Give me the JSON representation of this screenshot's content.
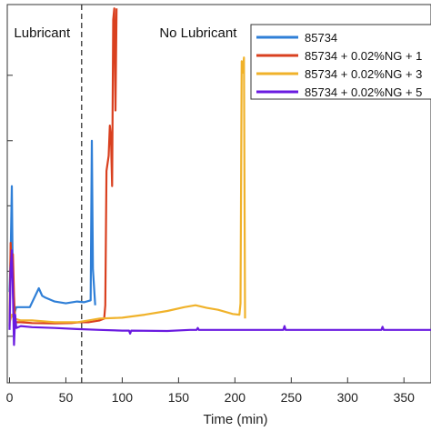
{
  "chart_data": {
    "type": "line",
    "xlabel": "Time (min)",
    "ylabel": "",
    "xlim": [
      -2,
      374
    ],
    "ylim": [
      0,
      1
    ],
    "x_ticks": [
      0,
      50,
      100,
      150,
      200,
      250,
      300,
      350
    ],
    "x_tick_labels": [
      "0",
      "50",
      "100",
      "150",
      "200",
      "250",
      "300",
      "350"
    ],
    "y_ticks": [
      0.123,
      0.295,
      0.468,
      0.64,
      0.813
    ],
    "grid": false,
    "legend_position": "top-right",
    "annotations": [
      {
        "text": "Lubricant",
        "x": 4,
        "y": 0.913
      },
      {
        "text": "No Lubricant",
        "x": 133,
        "y": 0.913
      }
    ],
    "vline": {
      "x": 64,
      "style": "dashed"
    },
    "series": [
      {
        "name": "85734",
        "color": "#2f7fd7",
        "points": [
          [
            0,
            0.24
          ],
          [
            1,
            0.33
          ],
          [
            2,
            0.52
          ],
          [
            3,
            0.24
          ],
          [
            4,
            0.18
          ],
          [
            6,
            0.2
          ],
          [
            10,
            0.2
          ],
          [
            18,
            0.2
          ],
          [
            26,
            0.25
          ],
          [
            29,
            0.23
          ],
          [
            32,
            0.225
          ],
          [
            40,
            0.215
          ],
          [
            50,
            0.21
          ],
          [
            60,
            0.215
          ],
          [
            66,
            0.213
          ],
          [
            72,
            0.218
          ],
          [
            73,
            0.64
          ],
          [
            74,
            0.3
          ],
          [
            76,
            0.205
          ]
        ]
      },
      {
        "name": "85734 + 0.02%NG + 1",
        "color": "#d9401f",
        "points": [
          [
            0,
            0.15
          ],
          [
            1,
            0.37
          ],
          [
            2,
            0.28
          ],
          [
            3,
            0.34
          ],
          [
            4,
            0.23
          ],
          [
            5,
            0.16
          ],
          [
            10,
            0.16
          ],
          [
            20,
            0.158
          ],
          [
            40,
            0.157
          ],
          [
            55,
            0.158
          ],
          [
            62,
            0.16
          ],
          [
            70,
            0.16
          ],
          [
            80,
            0.165
          ],
          [
            84,
            0.17
          ],
          [
            85,
            0.205
          ],
          [
            86,
            0.56
          ],
          [
            87,
            0.58
          ],
          [
            88,
            0.6
          ],
          [
            89,
            0.68
          ],
          [
            90,
            0.65
          ],
          [
            91,
            0.52
          ],
          [
            92,
            0.96
          ],
          [
            93,
            0.99
          ],
          [
            94,
            0.72
          ],
          [
            95,
            0.99
          ]
        ]
      },
      {
        "name": "85734 + 0.02%NG + 3",
        "color": "#f0b22a",
        "points": [
          [
            0,
            0.16
          ],
          [
            2,
            0.18
          ],
          [
            4,
            0.17
          ],
          [
            10,
            0.165
          ],
          [
            20,
            0.165
          ],
          [
            40,
            0.16
          ],
          [
            60,
            0.16
          ],
          [
            70,
            0.165
          ],
          [
            80,
            0.17
          ],
          [
            100,
            0.172
          ],
          [
            120,
            0.18
          ],
          [
            140,
            0.19
          ],
          [
            155,
            0.2
          ],
          [
            165,
            0.205
          ],
          [
            175,
            0.198
          ],
          [
            185,
            0.193
          ],
          [
            198,
            0.182
          ],
          [
            204,
            0.18
          ],
          [
            205,
            0.21
          ],
          [
            206,
            0.85
          ],
          [
            207,
            0.82
          ],
          [
            208,
            0.86
          ],
          [
            209,
            0.17
          ]
        ]
      },
      {
        "name": "85734 + 0.02%NG + 5",
        "color": "#6a1be0",
        "points": [
          [
            0,
            0.14
          ],
          [
            1,
            0.3
          ],
          [
            2,
            0.35
          ],
          [
            3,
            0.24
          ],
          [
            4,
            0.1
          ],
          [
            5,
            0.18
          ],
          [
            6,
            0.145
          ],
          [
            10,
            0.15
          ],
          [
            20,
            0.147
          ],
          [
            40,
            0.145
          ],
          [
            60,
            0.142
          ],
          [
            80,
            0.14
          ],
          [
            100,
            0.138
          ],
          [
            106,
            0.138
          ],
          [
            107,
            0.13
          ],
          [
            108,
            0.138
          ],
          [
            140,
            0.137
          ],
          [
            160,
            0.14
          ],
          [
            166,
            0.14
          ],
          [
            167,
            0.145
          ],
          [
            168,
            0.14
          ],
          [
            200,
            0.14
          ],
          [
            243,
            0.14
          ],
          [
            244,
            0.15
          ],
          [
            245,
            0.14
          ],
          [
            300,
            0.14
          ],
          [
            330,
            0.14
          ],
          [
            331,
            0.148
          ],
          [
            332,
            0.14
          ],
          [
            374,
            0.14
          ]
        ]
      }
    ]
  }
}
